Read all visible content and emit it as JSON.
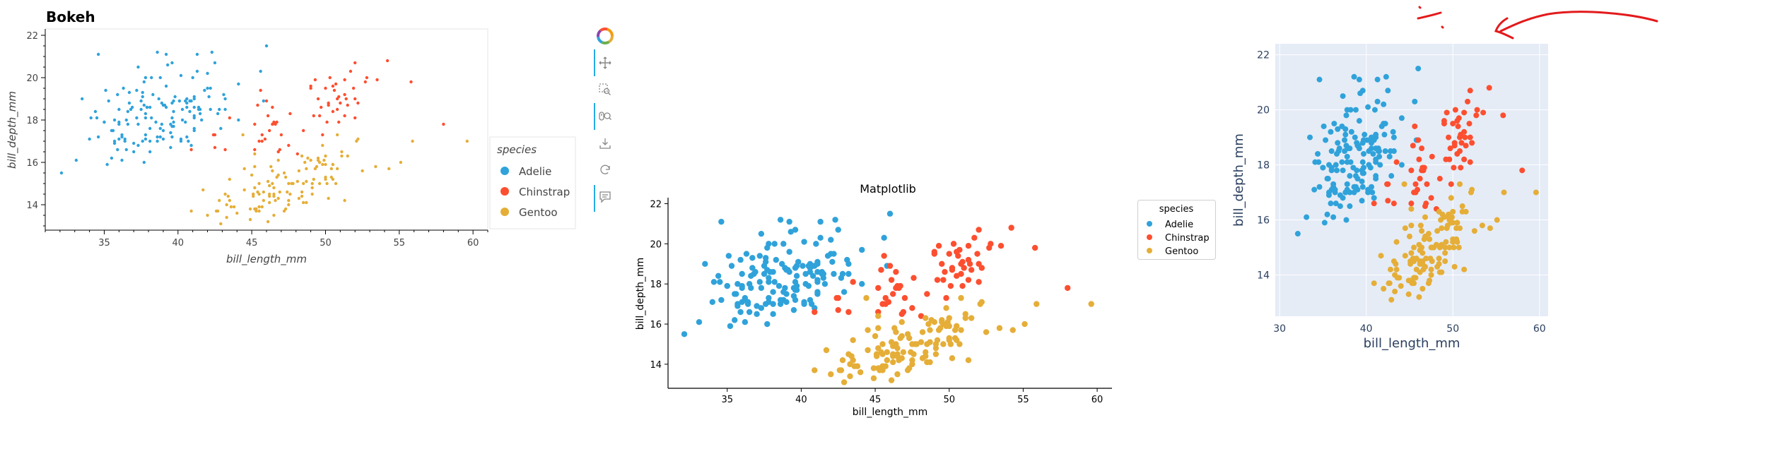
{
  "species": [
    "Adelie",
    "Chinstrap",
    "Gentoo"
  ],
  "colors": {
    "Adelie": "#30a2da",
    "Chinstrap": "#fc4f30",
    "Gentoo": "#e5ae38",
    "plotly_bg": "#e5ecf6",
    "annotation": "#e31a1c"
  },
  "bokeh": {
    "title": "Bokeh",
    "legend_title": "species",
    "tools": [
      "bokeh-logo-icon",
      "pan-icon",
      "box-zoom-icon",
      "wheel-zoom-icon",
      "save-icon",
      "reset-icon",
      "hover-icon"
    ]
  },
  "matplotlib": {
    "title": "Matplotlib",
    "legend_title": "species"
  },
  "plotly": {
    "xlabel": "bill_length_mm",
    "ylabel": "bill_depth_mm"
  },
  "chart_data": [
    {
      "type": "scatter",
      "title": "Bokeh",
      "xlabel": "bill_length_mm",
      "ylabel": "bill_depth_mm",
      "xlim": [
        31,
        61
      ],
      "ylim": [
        12.8,
        22.3
      ],
      "xticks": [
        35,
        40,
        45,
        50,
        55,
        60
      ],
      "yticks": [
        14,
        16,
        18,
        20,
        22
      ],
      "legend": "right",
      "grid": false,
      "series": [
        {
          "name": "Adelie"
        },
        {
          "name": "Chinstrap"
        },
        {
          "name": "Gentoo"
        }
      ]
    },
    {
      "type": "scatter",
      "title": "Matplotlib",
      "xlabel": "bill_length_mm",
      "ylabel": "bill_depth_mm",
      "xlim": [
        31,
        61
      ],
      "ylim": [
        12.8,
        22.3
      ],
      "xticks": [
        35,
        40,
        45,
        50,
        55,
        60
      ],
      "yticks": [
        14,
        16,
        18,
        20,
        22
      ],
      "legend": "outside right",
      "grid": false,
      "series": [
        {
          "name": "Adelie"
        },
        {
          "name": "Chinstrap"
        },
        {
          "name": "Gentoo"
        }
      ]
    },
    {
      "type": "scatter",
      "title": "",
      "xlabel": "bill_length_mm",
      "ylabel": "bill_depth_mm",
      "xlim": [
        29.5,
        61
      ],
      "ylim": [
        12.5,
        22.4
      ],
      "xticks": [
        30,
        40,
        50,
        60
      ],
      "yticks": [
        14,
        16,
        18,
        20,
        22
      ],
      "legend": "none",
      "grid": true,
      "series": [
        {
          "name": "Adelie"
        },
        {
          "name": "Chinstrap"
        },
        {
          "name": "Gentoo"
        }
      ]
    }
  ],
  "points": {
    "Adelie": [
      [
        39.1,
        18.7
      ],
      [
        39.5,
        17.4
      ],
      [
        40.3,
        18
      ],
      [
        36.7,
        19.3
      ],
      [
        39.3,
        20.6
      ],
      [
        38.9,
        17.8
      ],
      [
        39.2,
        19.6
      ],
      [
        34.1,
        18.1
      ],
      [
        42,
        20.2
      ],
      [
        37.8,
        17.1
      ],
      [
        37.8,
        17.3
      ],
      [
        41.1,
        17.6
      ],
      [
        38.6,
        21.2
      ],
      [
        34.6,
        21.1
      ],
      [
        36.6,
        17.8
      ],
      [
        38.7,
        19
      ],
      [
        42.5,
        20.7
      ],
      [
        34.4,
        18.4
      ],
      [
        46,
        21.5
      ],
      [
        37.8,
        18.3
      ],
      [
        37.7,
        18.7
      ],
      [
        35.9,
        19.2
      ],
      [
        38.2,
        18.1
      ],
      [
        38.8,
        17.2
      ],
      [
        35.3,
        18.9
      ],
      [
        40.6,
        18.6
      ],
      [
        40.5,
        17.9
      ],
      [
        37.9,
        18.6
      ],
      [
        40.5,
        18.9
      ],
      [
        39.5,
        16.7
      ],
      [
        37.2,
        18.1
      ],
      [
        39.5,
        17.8
      ],
      [
        40.9,
        18.9
      ],
      [
        36.4,
        17
      ],
      [
        39.2,
        21.1
      ],
      [
        38.8,
        20
      ],
      [
        42.2,
        18.5
      ],
      [
        37.6,
        19.3
      ],
      [
        39.8,
        19.1
      ],
      [
        36.5,
        18
      ],
      [
        40.8,
        18.4
      ],
      [
        36,
        18.5
      ],
      [
        44.1,
        19.7
      ],
      [
        37,
        16.9
      ],
      [
        39.6,
        18.8
      ],
      [
        41.1,
        19
      ],
      [
        37.5,
        18.9
      ],
      [
        36,
        17.9
      ],
      [
        42.3,
        21.2
      ],
      [
        39.6,
        17.7
      ],
      [
        40.1,
        18.9
      ],
      [
        35,
        17.9
      ],
      [
        42,
        19.5
      ],
      [
        34.5,
        18.1
      ],
      [
        41.4,
        18.6
      ],
      [
        39,
        17.5
      ],
      [
        40.6,
        18.8
      ],
      [
        36.5,
        16.6
      ],
      [
        37.6,
        19.1
      ],
      [
        35.7,
        16.9
      ],
      [
        41.3,
        21.1
      ],
      [
        37.6,
        17
      ],
      [
        41.1,
        18.2
      ],
      [
        36.4,
        17.1
      ],
      [
        41.6,
        18
      ],
      [
        35.5,
        16.2
      ],
      [
        41.1,
        19.1
      ],
      [
        35.9,
        16.6
      ],
      [
        41.8,
        19.4
      ],
      [
        33.5,
        19
      ],
      [
        39.7,
        18.4
      ],
      [
        39.6,
        17.2
      ],
      [
        45.8,
        18.9
      ],
      [
        35.5,
        17.5
      ],
      [
        42.8,
        18.5
      ],
      [
        40.9,
        16.8
      ],
      [
        37.2,
        19.4
      ],
      [
        36.2,
        16.1
      ],
      [
        42.1,
        19.1
      ],
      [
        34.6,
        17.2
      ],
      [
        42.9,
        17.6
      ],
      [
        36.7,
        18.8
      ],
      [
        35.1,
        19.4
      ],
      [
        37.3,
        17.8
      ],
      [
        41.3,
        20.3
      ],
      [
        36.3,
        19.5
      ],
      [
        36.9,
        18.6
      ],
      [
        38.3,
        19.2
      ],
      [
        38.9,
        18.8
      ],
      [
        35.7,
        18
      ],
      [
        41.1,
        18.1
      ],
      [
        34,
        17.1
      ],
      [
        39.6,
        18.1
      ],
      [
        36.2,
        17.3
      ],
      [
        40.8,
        18.9
      ],
      [
        38.1,
        18.6
      ],
      [
        40.3,
        18.5
      ],
      [
        33.1,
        16.1
      ],
      [
        43.2,
        18.5
      ],
      [
        35,
        17.9
      ],
      [
        41,
        20
      ],
      [
        37.7,
        16
      ],
      [
        37.8,
        20
      ],
      [
        37.9,
        18.6
      ],
      [
        39.7,
        18.9
      ],
      [
        38.6,
        17.2
      ],
      [
        38.2,
        20
      ],
      [
        38.1,
        17
      ],
      [
        43.2,
        19
      ],
      [
        38.1,
        16.5
      ],
      [
        45.6,
        20.3
      ],
      [
        39.7,
        17.7
      ],
      [
        42.2,
        19.5
      ],
      [
        39.6,
        20.7
      ],
      [
        42.7,
        18.3
      ],
      [
        38.6,
        17
      ],
      [
        37.3,
        20.5
      ],
      [
        35.7,
        17
      ],
      [
        41.1,
        18.6
      ],
      [
        36.2,
        17.2
      ],
      [
        37.7,
        19.8
      ],
      [
        40.2,
        17
      ],
      [
        41.4,
        18.5
      ],
      [
        35.2,
        15.9
      ],
      [
        40.6,
        19
      ],
      [
        38.8,
        17.6
      ],
      [
        41.5,
        18.3
      ],
      [
        39,
        17.1
      ],
      [
        44.1,
        18
      ],
      [
        38.5,
        17.9
      ],
      [
        43.1,
        19.2
      ],
      [
        36.8,
        18.5
      ],
      [
        37.5,
        18.5
      ],
      [
        38.1,
        17.6
      ],
      [
        41.1,
        17.5
      ],
      [
        35.6,
        17.5
      ],
      [
        40.2,
        20.1
      ],
      [
        37,
        16.5
      ],
      [
        39.7,
        17.9
      ],
      [
        40.2,
        17.1
      ],
      [
        40.6,
        17.2
      ],
      [
        32.1,
        15.5
      ],
      [
        40.7,
        17
      ],
      [
        37.3,
        16.8
      ],
      [
        39,
        18.7
      ],
      [
        39.2,
        18.6
      ],
      [
        36.6,
        18.4
      ],
      [
        36,
        17.8
      ],
      [
        37.8,
        18.1
      ],
      [
        36,
        17.1
      ],
      [
        41.5,
        18.5
      ]
    ],
    "Chinstrap": [
      [
        46.5,
        17.9
      ],
      [
        50,
        19.5
      ],
      [
        51.3,
        19.2
      ],
      [
        45.4,
        18.7
      ],
      [
        52.7,
        19.8
      ],
      [
        45.2,
        17.8
      ],
      [
        46.1,
        18.2
      ],
      [
        51.3,
        18.2
      ],
      [
        46,
        18.9
      ],
      [
        51.3,
        19.9
      ],
      [
        46.6,
        17.8
      ],
      [
        51.7,
        20.3
      ],
      [
        47,
        17.3
      ],
      [
        52,
        18.1
      ],
      [
        45.9,
        17.1
      ],
      [
        50.5,
        19.6
      ],
      [
        50.3,
        20
      ],
      [
        58,
        17.8
      ],
      [
        46.4,
        18.6
      ],
      [
        49.2,
        18.2
      ],
      [
        42.4,
        17.3
      ],
      [
        48.5,
        17.5
      ],
      [
        43.2,
        16.6
      ],
      [
        50.6,
        19.4
      ],
      [
        46.7,
        17.9
      ],
      [
        52,
        19
      ],
      [
        50.5,
        18.4
      ],
      [
        49.5,
        19
      ],
      [
        46.4,
        17.8
      ],
      [
        52.8,
        20
      ],
      [
        40.9,
        16.6
      ],
      [
        54.2,
        20.8
      ],
      [
        42.5,
        16.7
      ],
      [
        51,
        18.8
      ],
      [
        49.7,
        18.6
      ],
      [
        47.5,
        16.8
      ],
      [
        47.6,
        18.3
      ],
      [
        52,
        20.7
      ],
      [
        46.9,
        16.6
      ],
      [
        53.5,
        19.9
      ],
      [
        49,
        19.5
      ],
      [
        46.2,
        17.5
      ],
      [
        50.9,
        19.1
      ],
      [
        45.5,
        17
      ],
      [
        50.9,
        17.9
      ],
      [
        50.8,
        18.5
      ],
      [
        50.1,
        17.9
      ],
      [
        49,
        19.6
      ],
      [
        51.5,
        18.7
      ],
      [
        49.8,
        17.3
      ],
      [
        48.1,
        16.4
      ],
      [
        51.4,
        19
      ],
      [
        45.7,
        17.3
      ],
      [
        50.7,
        19.7
      ],
      [
        42.5,
        17.3
      ],
      [
        52.2,
        18.8
      ],
      [
        45.2,
        16.6
      ],
      [
        49.3,
        19.9
      ],
      [
        50.2,
        18.8
      ],
      [
        45.6,
        19.4
      ],
      [
        51.9,
        19.5
      ],
      [
        46.8,
        16.5
      ],
      [
        45.7,
        17
      ],
      [
        55.8,
        19.8
      ],
      [
        43.5,
        18.1
      ],
      [
        49.6,
        18.2
      ],
      [
        50.8,
        19
      ],
      [
        50.2,
        18.7
      ]
    ],
    "Gentoo": [
      [
        46.1,
        13.2
      ],
      [
        50,
        16.3
      ],
      [
        48.7,
        14.1
      ],
      [
        50,
        15.2
      ],
      [
        47.6,
        14.5
      ],
      [
        46.5,
        13.5
      ],
      [
        45.4,
        14.6
      ],
      [
        46.7,
        15.3
      ],
      [
        43.3,
        13.4
      ],
      [
        46.8,
        15.4
      ],
      [
        40.9,
        13.7
      ],
      [
        49,
        16.1
      ],
      [
        45.5,
        13.7
      ],
      [
        48.4,
        14.6
      ],
      [
        45.8,
        14.6
      ],
      [
        49.3,
        15.7
      ],
      [
        42,
        13.5
      ],
      [
        49.2,
        15.2
      ],
      [
        46.2,
        14.5
      ],
      [
        48.7,
        15.1
      ],
      [
        50.2,
        14.3
      ],
      [
        45.1,
        14.5
      ],
      [
        46.5,
        14.5
      ],
      [
        46.3,
        15.8
      ],
      [
        42.9,
        13.1
      ],
      [
        46.1,
        15.1
      ],
      [
        47.8,
        15
      ],
      [
        48.2,
        14.3
      ],
      [
        50,
        15.3
      ],
      [
        47.3,
        15.3
      ],
      [
        42.8,
        14.2
      ],
      [
        45.1,
        14.5
      ],
      [
        59.6,
        17
      ],
      [
        49.1,
        14.8
      ],
      [
        48.4,
        16.3
      ],
      [
        42.6,
        13.7
      ],
      [
        44.4,
        17.3
      ],
      [
        44,
        13.6
      ],
      [
        48.7,
        15.7
      ],
      [
        42.7,
        13.7
      ],
      [
        49.6,
        16
      ],
      [
        45.3,
        13.7
      ],
      [
        49.6,
        15
      ],
      [
        50.5,
        15.9
      ],
      [
        43.6,
        13.9
      ],
      [
        45.5,
        13.9
      ],
      [
        50.5,
        15.9
      ],
      [
        44.9,
        13.3
      ],
      [
        45.2,
        15.8
      ],
      [
        46.6,
        14.2
      ],
      [
        48.5,
        14.1
      ],
      [
        45.1,
        14.4
      ],
      [
        50.1,
        15
      ],
      [
        46.5,
        14.4
      ],
      [
        45,
        15.4
      ],
      [
        43.8,
        13.9
      ],
      [
        45.5,
        15
      ],
      [
        43.2,
        14.5
      ],
      [
        50.4,
        15.3
      ],
      [
        45.3,
        13.8
      ],
      [
        46.2,
        14.9
      ],
      [
        45.7,
        13.9
      ],
      [
        54.3,
        15.7
      ],
      [
        45.8,
        14.2
      ],
      [
        49.8,
        16.8
      ],
      [
        46.2,
        14.4
      ],
      [
        49.5,
        16.2
      ],
      [
        43.5,
        14.2
      ],
      [
        50.7,
        15
      ],
      [
        47.7,
        15
      ],
      [
        46.4,
        15.6
      ],
      [
        48.2,
        15.6
      ],
      [
        46.5,
        14.8
      ],
      [
        46.4,
        15
      ],
      [
        48.6,
        16
      ],
      [
        47.5,
        14.2
      ],
      [
        51.1,
        16.3
      ],
      [
        45.2,
        13.8
      ],
      [
        45.2,
        16.4
      ],
      [
        49.1,
        14.5
      ],
      [
        52.5,
        15.6
      ],
      [
        47.4,
        14.6
      ],
      [
        50,
        15.9
      ],
      [
        44.9,
        13.8
      ],
      [
        50.8,
        17.3
      ],
      [
        43.4,
        14.4
      ],
      [
        51.3,
        14.2
      ],
      [
        47.5,
        14
      ],
      [
        52.1,
        17
      ],
      [
        47.5,
        15
      ],
      [
        52.2,
        17.1
      ],
      [
        45.5,
        14.5
      ],
      [
        49.5,
        16.1
      ],
      [
        44.5,
        14.7
      ],
      [
        50.8,
        15.7
      ],
      [
        49.4,
        15.8
      ],
      [
        46.9,
        14.6
      ],
      [
        48.4,
        14.4
      ],
      [
        51.1,
        16.5
      ],
      [
        48.5,
        15
      ],
      [
        55.9,
        17
      ],
      [
        47.2,
        15.5
      ],
      [
        49.1,
        15
      ],
      [
        47.3,
        13.8
      ],
      [
        46.8,
        16.1
      ],
      [
        41.7,
        14.7
      ],
      [
        53.4,
        15.8
      ],
      [
        43.3,
        14
      ],
      [
        48.1,
        15.1
      ],
      [
        50.5,
        15.2
      ],
      [
        49.8,
        15.9
      ],
      [
        43.5,
        15.2
      ],
      [
        51.5,
        16.3
      ],
      [
        46.2,
        14.1
      ],
      [
        55.1,
        16
      ],
      [
        44.5,
        15.7
      ],
      [
        48.8,
        16.2
      ],
      [
        47.2,
        13.7
      ],
      [
        46.8,
        14.3
      ],
      [
        50.4,
        15.7
      ],
      [
        45.2,
        14.8
      ],
      [
        49.9,
        16.1
      ]
    ]
  }
}
